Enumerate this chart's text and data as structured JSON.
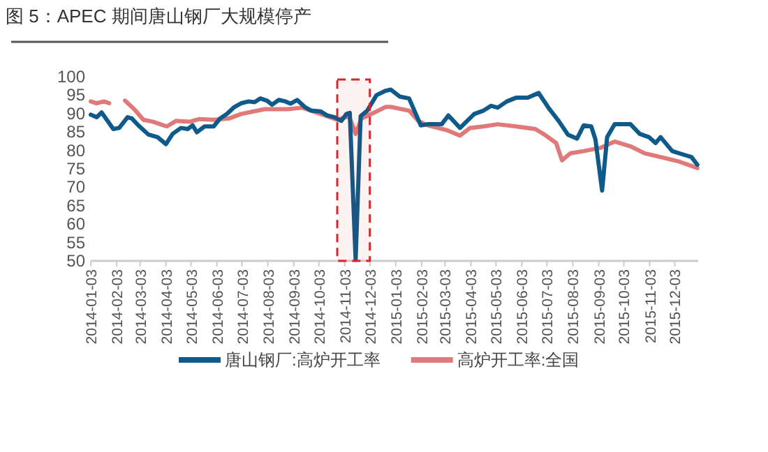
{
  "chart_data": {
    "type": "line",
    "title": "图 5：APEC 期间唐山钢厂大规模停产",
    "xlim": [
      "2014-01-03",
      "2015-12-31"
    ],
    "ylim": [
      50,
      100
    ],
    "yticks": [
      50,
      55,
      60,
      65,
      70,
      75,
      80,
      85,
      90,
      95,
      100
    ],
    "xticks": [
      "2014-01-03",
      "2014-02-03",
      "2014-03-03",
      "2014-04-03",
      "2014-05-03",
      "2014-06-03",
      "2014-07-03",
      "2014-08-03",
      "2014-09-03",
      "2014-10-03",
      "2014-11-03",
      "2014-12-03",
      "2015-01-03",
      "2015-02-03",
      "2015-03-03",
      "2015-04-03",
      "2015-05-03",
      "2015-06-03",
      "2015-07-03",
      "2015-08-03",
      "2015-09-03",
      "2015-10-03",
      "2015-11-03",
      "2015-12-03"
    ],
    "grid": false,
    "legend": "bottom",
    "bands": [
      {
        "axis": "x",
        "from": "2014-10-25",
        "to": "2014-12-03",
        "color": "#d9262a"
      }
    ],
    "series": [
      {
        "name": "唐山钢厂:高炉开工率",
        "color": "#0e5a8a",
        "x": [
          "2014-01-03",
          "2014-01-10",
          "2014-01-16",
          "2014-01-30",
          "2014-02-06",
          "2014-02-16",
          "2014-02-21",
          "2014-03-01",
          "2014-03-13",
          "2014-03-24",
          "2014-04-03",
          "2014-04-11",
          "2014-04-21",
          "2014-04-29",
          "2014-05-05",
          "2014-05-10",
          "2014-05-19",
          "2014-05-30",
          "2014-06-07",
          "2014-06-15",
          "2014-06-24",
          "2014-07-02",
          "2014-07-11",
          "2014-07-18",
          "2014-07-25",
          "2014-08-02",
          "2014-08-08",
          "2014-08-16",
          "2014-08-24",
          "2014-08-30",
          "2014-09-07",
          "2014-09-16",
          "2014-09-24",
          "2014-10-05",
          "2014-10-13",
          "2014-10-22",
          "2014-10-30",
          "2014-11-05",
          "2014-11-09",
          "2014-11-16",
          "2014-11-22",
          "2014-11-30",
          "2014-12-11",
          "2014-12-22",
          "2014-12-28",
          "2015-01-08",
          "2015-01-19",
          "2015-02-02",
          "2015-02-10",
          "2015-02-27",
          "2015-03-07",
          "2015-03-21",
          "2015-04-07",
          "2015-04-18",
          "2015-04-27",
          "2015-05-05",
          "2015-05-16",
          "2015-05-27",
          "2015-06-10",
          "2015-06-23",
          "2015-07-06",
          "2015-07-17",
          "2015-07-28",
          "2015-08-08",
          "2015-08-16",
          "2015-08-25",
          "2015-08-30",
          "2015-09-07",
          "2015-09-13",
          "2015-09-22",
          "2015-10-11",
          "2015-10-22",
          "2015-11-02",
          "2015-11-10",
          "2015-11-16",
          "2015-11-30",
          "2015-12-17",
          "2015-12-23",
          "2015-12-30"
        ],
        "values": [
          89.7,
          89,
          90.3,
          85.8,
          86.1,
          89,
          88.7,
          86.8,
          84.3,
          83.6,
          81.7,
          84.5,
          86.1,
          85.8,
          86.8,
          84.9,
          86.5,
          86.5,
          88.7,
          89.9,
          91.8,
          92.8,
          93.3,
          93.1,
          94.1,
          93.5,
          92.4,
          93.7,
          93.3,
          92.7,
          93.7,
          91.8,
          90.8,
          90.6,
          89.5,
          89,
          88,
          89.9,
          90.2,
          50.3,
          89.3,
          90.8,
          95,
          96.2,
          96.5,
          94.6,
          94.1,
          86.8,
          87.1,
          87.1,
          89.5,
          86.1,
          89.9,
          90.8,
          92.1,
          91.6,
          93.3,
          94.3,
          94.3,
          95.6,
          91.2,
          88,
          84.3,
          83.2,
          86.8,
          86.5,
          83,
          69.1,
          83.6,
          87.1,
          87.1,
          84.5,
          83.6,
          82,
          83.6,
          79.8,
          78.6,
          78.2,
          76.1
        ]
      },
      {
        "name": "高炉开工率:全国",
        "color": "#e07a7a",
        "x": [
          "2014-01-03",
          "2014-01-10",
          "2014-01-19",
          "2014-01-25",
          "2014-02-03",
          "2014-02-13",
          "2014-02-24",
          "2014-03-07",
          "2014-03-18",
          "2014-04-04",
          "2014-04-15",
          "2014-05-02",
          "2014-05-13",
          "2014-05-30",
          "2014-06-18",
          "2014-07-02",
          "2014-07-30",
          "2014-08-27",
          "2014-09-13",
          "2014-10-05",
          "2014-10-25",
          "2014-11-08",
          "2014-11-16",
          "2014-11-23",
          "2014-12-05",
          "2014-12-22",
          "2014-12-28",
          "2015-01-19",
          "2015-01-30",
          "2015-02-10",
          "2015-03-05",
          "2015-03-21",
          "2015-04-02",
          "2015-04-18",
          "2015-05-05",
          "2015-05-27",
          "2015-06-19",
          "2015-06-30",
          "2015-07-14",
          "2015-07-21",
          "2015-07-31",
          "2015-08-16",
          "2015-09-05",
          "2015-09-22",
          "2015-10-11",
          "2015-10-28",
          "2015-11-16",
          "2015-12-09",
          "2015-12-30"
        ],
        "values": [
          93.3,
          92.8,
          93.3,
          92.8,
          null,
          93.5,
          91.2,
          88.3,
          87.8,
          86.5,
          88,
          87.8,
          88.5,
          88.3,
          88.7,
          89.9,
          91.2,
          91.2,
          91.6,
          89.9,
          88.3,
          89.3,
          84.5,
          88.7,
          89.9,
          91.8,
          91.8,
          90.8,
          88,
          86.8,
          85.5,
          84,
          86.1,
          86.5,
          87.1,
          86.5,
          85.8,
          84.3,
          82,
          77.3,
          79.2,
          79.8,
          80.7,
          82.4,
          81.1,
          79.2,
          78.2,
          76.9,
          75.2
        ]
      }
    ]
  }
}
